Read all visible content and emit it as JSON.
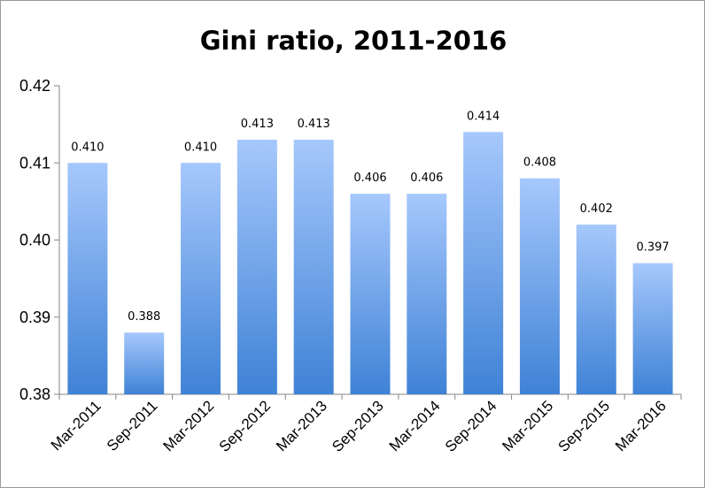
{
  "chart_data": {
    "type": "bar",
    "title": "Gini ratio, 2011-2016",
    "xlabel": "",
    "ylabel": "",
    "categories": [
      "Mar-2011",
      "Sep-2011",
      "Mar-2012",
      "Sep-2012",
      "Mar-2013",
      "Sep-2013",
      "Mar-2014",
      "Sep-2014",
      "Mar-2015",
      "Sep-2015",
      "Mar-2016"
    ],
    "values": [
      0.41,
      0.388,
      0.41,
      0.413,
      0.413,
      0.406,
      0.406,
      0.414,
      0.408,
      0.402,
      0.397
    ],
    "data_labels": [
      "0.410",
      "0.388",
      "0.410",
      "0.413",
      "0.413",
      "0.406",
      "0.406",
      "0.414",
      "0.408",
      "0.402",
      "0.397"
    ],
    "ylim": [
      0.38,
      0.42
    ],
    "yticks": [
      "0.38",
      "0.39",
      "0.40",
      "0.41",
      "0.42"
    ],
    "ytick_values": [
      0.38,
      0.39,
      0.4,
      0.41,
      0.42
    ],
    "grid": false,
    "legend": "none",
    "colors": {
      "bar_top": "#a6c8fc",
      "bar_bottom": "#3f82d6",
      "axis": "#868686"
    }
  }
}
